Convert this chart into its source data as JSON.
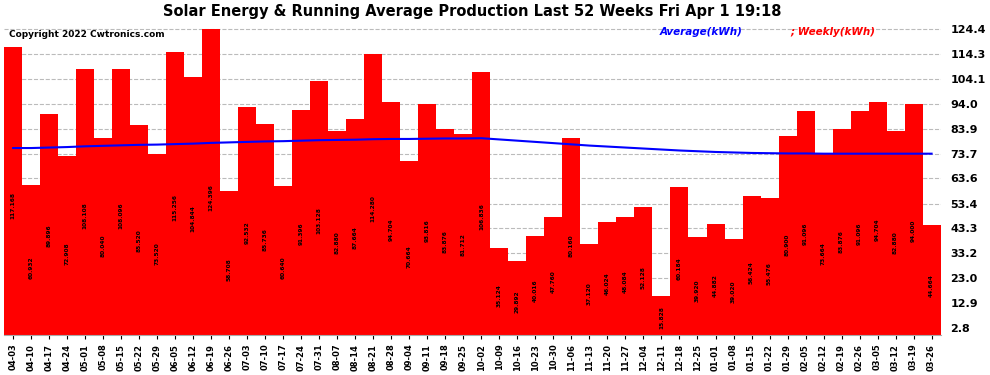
{
  "title": "Solar Energy & Running Average Production Last 52 Weeks Fri Apr 1 19:18",
  "copyright": "Copyright 2022 Cwtronics.com",
  "legend_avg": "Average(kWh)",
  "legend_weekly": "Weekly(kWh)",
  "bar_color": "#FF0000",
  "avg_line_color": "#0000FF",
  "background_color": "#FFFFFF",
  "grid_color": "#BBBBBB",
  "categories": [
    "04-03",
    "04-10",
    "04-17",
    "04-24",
    "05-01",
    "05-08",
    "05-15",
    "05-22",
    "05-29",
    "06-05",
    "06-12",
    "06-19",
    "06-26",
    "07-03",
    "07-10",
    "07-17",
    "07-24",
    "07-31",
    "08-07",
    "08-14",
    "08-21",
    "08-28",
    "09-04",
    "09-11",
    "09-18",
    "09-25",
    "10-02",
    "10-09",
    "10-16",
    "10-23",
    "10-30",
    "11-06",
    "11-13",
    "11-20",
    "11-27",
    "12-04",
    "12-11",
    "12-18",
    "12-25",
    "01-01",
    "01-08",
    "01-15",
    "01-22",
    "01-29",
    "02-05",
    "02-12",
    "02-19",
    "02-26",
    "03-05",
    "03-12",
    "03-19",
    "03-26"
  ],
  "weekly_values": [
    117.168,
    60.932,
    89.896,
    72.908,
    108.108,
    80.04,
    108.096,
    85.52,
    73.52,
    115.256,
    104.844,
    124.396,
    58.708,
    92.532,
    85.736,
    60.64,
    91.396,
    103.128,
    82.88,
    87.664,
    114.28,
    94.704,
    70.664,
    93.816,
    83.876,
    81.712,
    106.836,
    35.124,
    29.892,
    40.016,
    47.76,
    80.16,
    37.12,
    46.024,
    48.084,
    52.128,
    15.828,
    60.184,
    39.92,
    44.882,
    39.02,
    56.424,
    55.476,
    80.9,
    91.096,
    73.664,
    83.876,
    91.096,
    94.704,
    82.88,
    94.0,
    44.664
  ],
  "running_avg": [
    76.0,
    76.0,
    76.2,
    76.4,
    76.7,
    76.9,
    77.1,
    77.3,
    77.4,
    77.6,
    77.8,
    78.1,
    78.3,
    78.5,
    78.7,
    78.8,
    79.0,
    79.2,
    79.3,
    79.4,
    79.6,
    79.7,
    79.7,
    79.8,
    79.9,
    79.9,
    80.0,
    79.5,
    79.0,
    78.5,
    78.0,
    77.5,
    77.0,
    76.6,
    76.2,
    75.8,
    75.4,
    75.0,
    74.7,
    74.4,
    74.2,
    74.0,
    73.9,
    73.8,
    73.8,
    73.7,
    73.7,
    73.7,
    73.7,
    73.7,
    73.7,
    73.7
  ],
  "yticks": [
    2.8,
    12.9,
    23.0,
    33.2,
    43.3,
    53.4,
    63.6,
    73.7,
    83.9,
    94.0,
    104.1,
    114.3,
    124.4
  ],
  "ymin": 0,
  "ymax": 128
}
